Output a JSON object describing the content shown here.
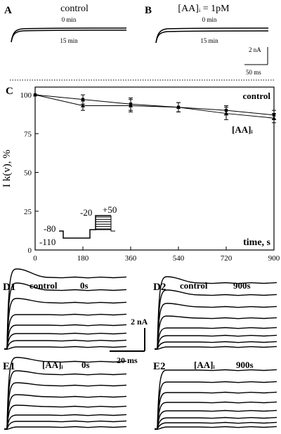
{
  "panelA": {
    "letter": "A",
    "title": "control",
    "label_top": "0 min",
    "label_bottom": "15 min"
  },
  "panelB": {
    "letter": "B",
    "title": "[AA]ᵢ = 1pM",
    "label_top": "0 min",
    "label_bottom": "15 min"
  },
  "scalebar_AB": {
    "current": "2 nA",
    "time": "50 ms"
  },
  "panelC": {
    "letter": "C"
  },
  "chart_data": {
    "type": "line",
    "ylabel": "I k(v), %",
    "xlabel": "time, s",
    "xlim": [
      0,
      900
    ],
    "ylim": [
      0,
      105
    ],
    "xticks": [
      0,
      180,
      360,
      540,
      720,
      900
    ],
    "yticks": [
      0,
      25,
      50,
      75,
      100
    ],
    "grid": false,
    "series": [
      {
        "name": "control",
        "marker": "square",
        "x": [
          0,
          180,
          360,
          540,
          720,
          900
        ],
        "y": [
          100,
          97,
          94,
          92,
          90,
          87
        ],
        "err": [
          0,
          3,
          4,
          3,
          3,
          3
        ]
      },
      {
        "name": "[AA]ᵢ",
        "marker": "triangle",
        "x": [
          0,
          180,
          360,
          540,
          720,
          900
        ],
        "y": [
          100,
          93,
          93,
          92,
          88,
          85
        ],
        "err": [
          0,
          3,
          4,
          3,
          4,
          3
        ]
      }
    ],
    "protocol_labels": [
      "-80",
      "-110",
      "-20",
      "+50"
    ]
  },
  "panelD1": {
    "letter": "D1",
    "title": "control",
    "time": "0s"
  },
  "panelD2": {
    "letter": "D2",
    "title": "control",
    "time": "900s"
  },
  "panelE1": {
    "letter": "E1",
    "title": "[AA]ᵢ",
    "time": "0s"
  },
  "panelE2": {
    "letter": "E2",
    "title": "[AA]ᵢ",
    "time": "900s"
  },
  "scalebar_DE": {
    "current": "2 nA",
    "time": "20 ms"
  },
  "families": {
    "D1": {
      "levels": [
        3,
        12,
        22,
        34,
        49,
        66,
        84,
        102
      ],
      "overshoot": [
        0,
        0,
        0,
        0,
        0,
        6,
        10,
        12
      ]
    },
    "D2": {
      "levels": [
        3,
        10,
        19,
        30,
        44,
        60,
        77,
        94
      ],
      "overshoot": [
        0,
        0,
        0,
        0,
        3,
        5,
        7,
        9
      ]
    },
    "E1": {
      "levels": [
        3,
        11,
        20,
        32,
        46,
        62,
        78,
        96
      ],
      "overshoot": [
        0,
        0,
        0,
        2,
        3,
        4,
        5,
        6
      ]
    },
    "E2": {
      "levels": [
        3,
        9,
        16,
        26,
        38,
        52,
        67,
        84
      ],
      "overshoot": [
        0,
        0,
        0,
        0,
        0,
        0,
        0,
        0
      ]
    }
  }
}
